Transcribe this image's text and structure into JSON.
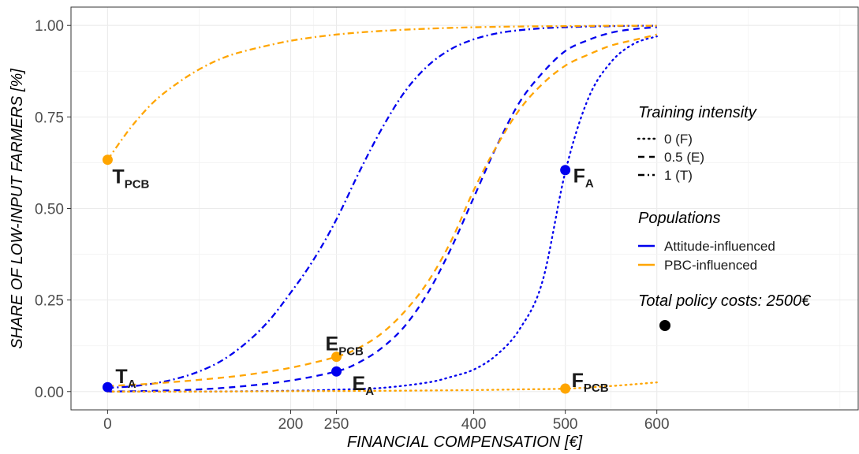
{
  "chart_data": {
    "type": "line",
    "title": "",
    "xlabel": "FINANCIAL COMPENSATION [€]",
    "ylabel": "SHARE OF LOW-INPUT FARMERS [%]",
    "xlim": [
      -40,
      820
    ],
    "ylim": [
      -0.05,
      1.05
    ],
    "x_ticks": [
      0,
      200,
      250,
      400,
      500,
      600
    ],
    "x_tick_labels": [
      "0",
      "200",
      "250",
      "400",
      "500",
      "600"
    ],
    "y_ticks": [
      0,
      0.25,
      0.5,
      0.75,
      1.0
    ],
    "y_tick_labels": [
      "0.00",
      "0.25",
      "0.50",
      "0.75",
      "1.00"
    ],
    "grid": true,
    "legend": {
      "placement": "right",
      "training": {
        "title": "Training intensity",
        "items": [
          {
            "label": "0 (F)",
            "linetype": "dotted"
          },
          {
            "label": "0.5 (E)",
            "linetype": "dashed"
          },
          {
            "label": "1 (T)",
            "linetype": "dotdash"
          }
        ]
      },
      "populations": {
        "title": "Populations",
        "items": [
          {
            "label": "Attitude-influenced",
            "color": "#0000ee"
          },
          {
            "label": "PBC-influenced",
            "color": "#ffa500"
          }
        ]
      }
    },
    "series": [
      {
        "population": "Attitude-influenced",
        "training": "1 (T)",
        "color": "#0000ee",
        "linetype": "dotdash",
        "x": [
          0,
          25,
          50,
          75,
          100,
          125,
          150,
          175,
          200,
          225,
          250,
          275,
          300,
          325,
          350,
          375,
          400,
          425,
          450,
          475,
          500,
          525,
          550,
          575,
          600
        ],
        "y": [
          0.01,
          0.014,
          0.022,
          0.035,
          0.055,
          0.085,
          0.13,
          0.19,
          0.27,
          0.36,
          0.47,
          0.6,
          0.72,
          0.82,
          0.89,
          0.935,
          0.962,
          0.978,
          0.987,
          0.992,
          0.995,
          0.997,
          0.998,
          0.999,
          0.999
        ]
      },
      {
        "population": "Attitude-influenced",
        "training": "0.5 (E)",
        "color": "#0000ee",
        "linetype": "dashed",
        "x": [
          0,
          50,
          100,
          150,
          200,
          250,
          275,
          300,
          325,
          350,
          375,
          400,
          425,
          450,
          475,
          500,
          525,
          550,
          575,
          600
        ],
        "y": [
          0.0,
          0.002,
          0.006,
          0.015,
          0.03,
          0.055,
          0.08,
          0.12,
          0.18,
          0.27,
          0.39,
          0.53,
          0.67,
          0.79,
          0.87,
          0.93,
          0.96,
          0.98,
          0.99,
          0.995
        ]
      },
      {
        "population": "Attitude-influenced",
        "training": "0 (F)",
        "color": "#0000ee",
        "linetype": "dotted",
        "x": [
          0,
          100,
          200,
          250,
          300,
          350,
          375,
          400,
          425,
          450,
          475,
          500,
          525,
          550,
          575,
          600
        ],
        "y": [
          0.0,
          0.0,
          0.002,
          0.005,
          0.01,
          0.025,
          0.04,
          0.06,
          0.1,
          0.17,
          0.3,
          0.6,
          0.8,
          0.9,
          0.95,
          0.97
        ]
      },
      {
        "population": "PBC-influenced",
        "training": "1 (T)",
        "color": "#ffa500",
        "linetype": "dotdash",
        "x": [
          0,
          25,
          50,
          75,
          100,
          125,
          150,
          200,
          250,
          300,
          350,
          400,
          450,
          500,
          550,
          600
        ],
        "y": [
          0.633,
          0.72,
          0.79,
          0.84,
          0.88,
          0.91,
          0.93,
          0.958,
          0.975,
          0.985,
          0.991,
          0.995,
          0.997,
          0.998,
          0.999,
          0.999
        ]
      },
      {
        "population": "PBC-influenced",
        "training": "0.5 (E)",
        "color": "#ffa500",
        "linetype": "dashed",
        "x": [
          0,
          50,
          100,
          150,
          200,
          250,
          275,
          300,
          325,
          350,
          375,
          400,
          425,
          450,
          475,
          500,
          525,
          550,
          575,
          600
        ],
        "y": [
          0.015,
          0.022,
          0.032,
          0.045,
          0.065,
          0.095,
          0.12,
          0.16,
          0.22,
          0.3,
          0.41,
          0.55,
          0.67,
          0.77,
          0.84,
          0.89,
          0.92,
          0.945,
          0.96,
          0.975
        ]
      },
      {
        "population": "PBC-influenced",
        "training": "0 (F)",
        "color": "#ffa500",
        "linetype": "dotted",
        "x": [
          0,
          100,
          200,
          300,
          400,
          450,
          500,
          550,
          600
        ],
        "y": [
          0.0,
          0.0,
          0.001,
          0.002,
          0.004,
          0.006,
          0.008,
          0.015,
          0.025
        ]
      }
    ],
    "points": [
      {
        "id": "T_PCB",
        "main": "T",
        "sub": "PCB",
        "x": 0,
        "y": 0.633,
        "color": "#ffa500"
      },
      {
        "id": "T_A",
        "main": "T",
        "sub": "A",
        "x": 0,
        "y": 0.012,
        "color": "#0000ee"
      },
      {
        "id": "E_PCB",
        "main": "E",
        "sub": "PCB",
        "x": 250,
        "y": 0.095,
        "color": "#ffa500"
      },
      {
        "id": "E_A",
        "main": "E",
        "sub": "A",
        "x": 250,
        "y": 0.055,
        "color": "#0000ee"
      },
      {
        "id": "F_A",
        "main": "F",
        "sub": "A",
        "x": 500,
        "y": 0.605,
        "color": "#0000ee"
      },
      {
        "id": "F_PCB",
        "main": "F",
        "sub": "PCB",
        "x": 500,
        "y": 0.008,
        "color": "#ffa500"
      }
    ],
    "cost_legend": {
      "label": "Total policy costs: 2500€",
      "color": "#000000"
    }
  }
}
